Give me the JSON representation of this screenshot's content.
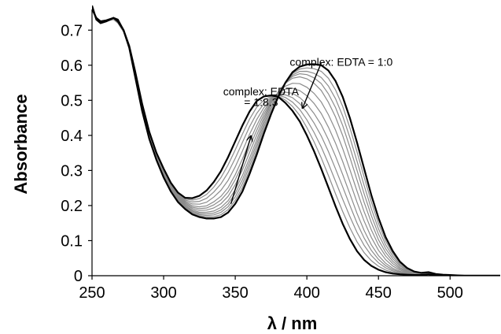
{
  "chart_data": {
    "type": "line",
    "xlabel": "λ / nm",
    "ylabel": "Absorbance",
    "xlim": [
      250,
      535
    ],
    "ylim": [
      0,
      0.75
    ],
    "x_ticks": [
      250,
      300,
      350,
      400,
      450,
      500
    ],
    "y_ticks": [
      0,
      0.1,
      0.2,
      0.3,
      0.4,
      0.5,
      0.6,
      0.7
    ],
    "x_tick_labels": [
      "250",
      "300",
      "350",
      "400",
      "450",
      "500"
    ],
    "y_tick_labels": [
      "0",
      "0.1",
      "0.2",
      "0.3",
      "0.4",
      "0.5",
      "0.6",
      "0.7"
    ],
    "grid": false,
    "annotations": [
      {
        "text": "complex: EDTA = 1:0",
        "x": 424,
        "y": 0.61
      },
      {
        "text": "complex: EDTA",
        "x": 368,
        "y": 0.525
      },
      {
        "text": "= 1:8.3",
        "x": 368,
        "y": 0.495
      }
    ],
    "arrows": [
      {
        "from": [
          410,
          0.606
        ],
        "to": [
          397,
          0.478
        ]
      },
      {
        "from": [
          347,
          0.205
        ],
        "to": [
          361,
          0.398
        ]
      }
    ],
    "series": [
      {
        "ratio": 0,
        "x": [
          250,
          253,
          256,
          260,
          265,
          268,
          272,
          276,
          280,
          285,
          290,
          295,
          300,
          305,
          310,
          315,
          320,
          325,
          330,
          335,
          340,
          345,
          350,
          355,
          360,
          365,
          370,
          375,
          380,
          385,
          390,
          395,
          400,
          405,
          410,
          415,
          420,
          425,
          430,
          435,
          440,
          445,
          450,
          455,
          460,
          465,
          470,
          475,
          480,
          485,
          490,
          495,
          500,
          505,
          510,
          520,
          535
        ],
        "y": [
          0.77,
          0.73,
          0.72,
          0.725,
          0.735,
          0.73,
          0.7,
          0.65,
          0.57,
          0.47,
          0.39,
          0.33,
          0.28,
          0.24,
          0.21,
          0.19,
          0.175,
          0.167,
          0.163,
          0.163,
          0.167,
          0.18,
          0.205,
          0.24,
          0.29,
          0.345,
          0.405,
          0.46,
          0.51,
          0.55,
          0.58,
          0.596,
          0.602,
          0.603,
          0.6,
          0.585,
          0.555,
          0.51,
          0.45,
          0.38,
          0.305,
          0.23,
          0.165,
          0.11,
          0.07,
          0.04,
          0.022,
          0.012,
          0.008,
          0.01,
          0.005,
          0.003,
          0.002,
          0.001,
          0,
          0,
          0
        ]
      },
      {
        "ratio": 0.35,
        "x": [
          250,
          253,
          256,
          260,
          265,
          268,
          272,
          276,
          280,
          285,
          290,
          295,
          300,
          305,
          310,
          315,
          320,
          325,
          330,
          335,
          340,
          345,
          350,
          355,
          360,
          365,
          370,
          375,
          380,
          385,
          390,
          395,
          400,
          405,
          410,
          415,
          420,
          425,
          430,
          435,
          440,
          445,
          450,
          455,
          460,
          465,
          470,
          475,
          480,
          485,
          490,
          495,
          500,
          505,
          510,
          520,
          535
        ],
        "y": [
          0.765,
          0.73,
          0.72,
          0.728,
          0.733,
          0.725,
          0.7,
          0.65,
          0.575,
          0.478,
          0.398,
          0.339,
          0.289,
          0.25,
          0.22,
          0.2,
          0.187,
          0.18,
          0.18,
          0.183,
          0.193,
          0.212,
          0.243,
          0.283,
          0.333,
          0.385,
          0.44,
          0.49,
          0.525,
          0.55,
          0.565,
          0.57,
          0.565,
          0.553,
          0.533,
          0.5,
          0.458,
          0.405,
          0.343,
          0.278,
          0.213,
          0.155,
          0.105,
          0.068,
          0.042,
          0.024,
          0.013,
          0.008,
          0.006,
          0.008,
          0.004,
          0.002,
          0.001,
          0.001,
          0,
          0,
          0
        ]
      },
      {
        "ratio": 0.65,
        "x": [
          250,
          253,
          256,
          260,
          265,
          268,
          272,
          276,
          280,
          285,
          290,
          295,
          300,
          305,
          310,
          315,
          320,
          325,
          330,
          335,
          340,
          345,
          350,
          355,
          360,
          365,
          370,
          375,
          380,
          385,
          390,
          395,
          400,
          405,
          410,
          415,
          420,
          425,
          430,
          435,
          440,
          445,
          450,
          455,
          460,
          465,
          470,
          475,
          480,
          485,
          490,
          495,
          500,
          505,
          510,
          520,
          535
        ],
        "y": [
          0.76,
          0.73,
          0.72,
          0.725,
          0.73,
          0.72,
          0.695,
          0.648,
          0.578,
          0.485,
          0.405,
          0.345,
          0.297,
          0.258,
          0.228,
          0.21,
          0.2,
          0.197,
          0.2,
          0.212,
          0.228,
          0.253,
          0.29,
          0.335,
          0.385,
          0.43,
          0.47,
          0.502,
          0.518,
          0.522,
          0.518,
          0.505,
          0.485,
          0.458,
          0.425,
          0.383,
          0.335,
          0.283,
          0.228,
          0.173,
          0.125,
          0.085,
          0.055,
          0.034,
          0.02,
          0.012,
          0.007,
          0.005,
          0.004,
          0.006,
          0.003,
          0.002,
          0.001,
          0,
          0,
          0,
          0
        ]
      },
      {
        "ratio": 1,
        "x": [
          250,
          253,
          256,
          260,
          265,
          268,
          272,
          276,
          280,
          285,
          290,
          295,
          300,
          305,
          310,
          315,
          320,
          325,
          330,
          335,
          340,
          345,
          350,
          355,
          360,
          365,
          370,
          375,
          380,
          385,
          390,
          395,
          400,
          405,
          410,
          415,
          420,
          425,
          430,
          435,
          440,
          445,
          450,
          455,
          460,
          465,
          470,
          475,
          480,
          485,
          490,
          495,
          500,
          505,
          510,
          520,
          535
        ],
        "y": [
          0.76,
          0.735,
          0.725,
          0.728,
          0.735,
          0.725,
          0.7,
          0.655,
          0.585,
          0.49,
          0.41,
          0.35,
          0.305,
          0.265,
          0.237,
          0.222,
          0.221,
          0.228,
          0.243,
          0.267,
          0.298,
          0.338,
          0.383,
          0.428,
          0.468,
          0.498,
          0.511,
          0.514,
          0.51,
          0.493,
          0.47,
          0.44,
          0.4,
          0.355,
          0.305,
          0.252,
          0.198,
          0.148,
          0.105,
          0.07,
          0.045,
          0.028,
          0.017,
          0.01,
          0.006,
          0.004,
          0.003,
          0.002,
          0.002,
          0.004,
          0.001,
          0.001,
          0,
          0,
          0,
          0,
          0
        ]
      }
    ]
  }
}
